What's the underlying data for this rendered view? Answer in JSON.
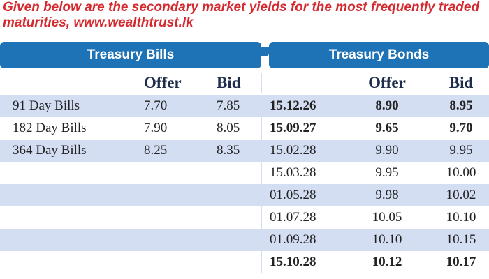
{
  "intro_text": "Given below are the secondary market yields for the most frequently traded maturities, www.wealthtrust.lk",
  "headers": {
    "bills": "Treasury Bills",
    "bonds": "Treasury Bonds"
  },
  "columns": {
    "bills_offer": "Offer",
    "bills_bid": "Bid",
    "bonds_offer": "Offer",
    "bonds_bid": "Bid"
  },
  "colors": {
    "intro_red": "#d42a2f",
    "header_blue": "#1e72b6",
    "row_shade": "#d4def2"
  },
  "bills": [
    {
      "name": "91 Day Bills",
      "offer": "7.70",
      "bid": "7.85"
    },
    {
      "name": "182 Day Bills",
      "offer": "7.90",
      "bid": "8.05"
    },
    {
      "name": "364 Day Bills",
      "offer": "8.25",
      "bid": "8.35"
    }
  ],
  "bonds": [
    {
      "maturity": "15.12.26",
      "offer": "8.90",
      "bid": "8.95",
      "bold": true
    },
    {
      "maturity": "15.09.27",
      "offer": "9.65",
      "bid": "9.70",
      "bold": true
    },
    {
      "maturity": "15.02.28",
      "offer": "9.90",
      "bid": "9.95",
      "bold": false
    },
    {
      "maturity": "15.03.28",
      "offer": "9.95",
      "bid": "10.00",
      "bold": false
    },
    {
      "maturity": "01.05.28",
      "offer": "9.98",
      "bid": "10.02",
      "bold": false
    },
    {
      "maturity": "01.07.28",
      "offer": "10.05",
      "bid": "10.10",
      "bold": false
    },
    {
      "maturity": "01.09.28",
      "offer": "10.10",
      "bid": "10.15",
      "bold": false
    },
    {
      "maturity": "15.10.28",
      "offer": "10.12",
      "bid": "10.17",
      "bold": true
    }
  ]
}
